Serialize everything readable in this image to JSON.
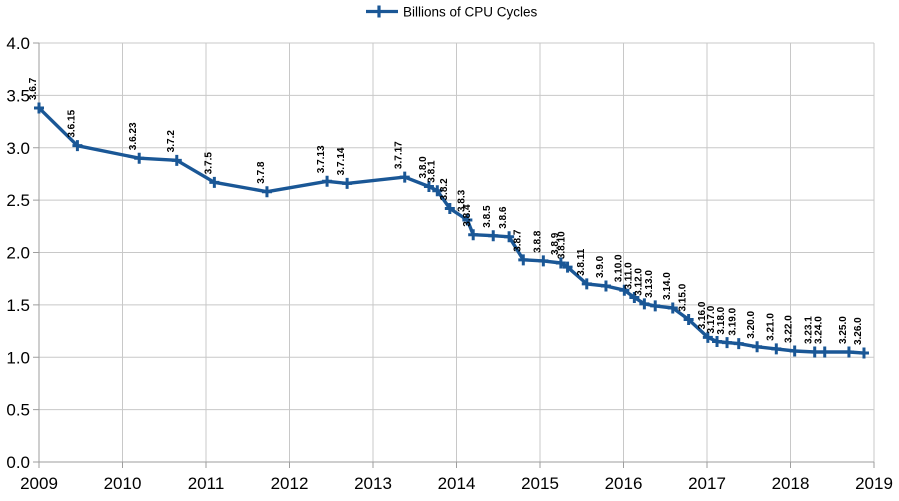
{
  "chart_data": {
    "type": "line",
    "title": "",
    "xlabel": "",
    "ylabel": "",
    "xlim": [
      2009,
      2019
    ],
    "ylim": [
      0.0,
      4.0
    ],
    "x_ticks": [
      2009,
      2010,
      2011,
      2012,
      2013,
      2014,
      2015,
      2016,
      2017,
      2018,
      2019
    ],
    "x_tick_labels": [
      "2009",
      "2010",
      "2011",
      "2012",
      "2013",
      "2014",
      "2015",
      "2016",
      "2017",
      "2018",
      "2019"
    ],
    "y_ticks": [
      0.0,
      0.5,
      1.0,
      1.5,
      2.0,
      2.5,
      3.0,
      3.5,
      4.0
    ],
    "y_tick_labels": [
      "0.0",
      "0.5",
      "1.0",
      "1.5",
      "2.0",
      "2.5",
      "3.0",
      "3.5",
      "4.0"
    ],
    "grid": true,
    "legend": {
      "label": "Billions of CPU Cycles",
      "position": "top-center",
      "marker": "plus-line"
    },
    "colors": {
      "series": "#1A5796",
      "grid": "#c8c8c8",
      "axis": "#9e9e9e",
      "text": "#000000",
      "background": "#ffffff"
    },
    "series": [
      {
        "name": "Billions of CPU Cycles",
        "color": "#1A5796",
        "marker": "plus",
        "points": [
          {
            "label": "3.6.7",
            "x": 2009.0,
            "y": 3.38
          },
          {
            "label": "3.6.15",
            "x": 2009.46,
            "y": 3.02
          },
          {
            "label": "3.6.23",
            "x": 2010.2,
            "y": 2.9
          },
          {
            "label": "3.7.2",
            "x": 2010.65,
            "y": 2.88
          },
          {
            "label": "3.7.5",
            "x": 2011.1,
            "y": 2.67
          },
          {
            "label": "3.7.8",
            "x": 2011.73,
            "y": 2.58
          },
          {
            "label": "3.7.13",
            "x": 2012.45,
            "y": 2.68
          },
          {
            "label": "3.7.14",
            "x": 2012.69,
            "y": 2.66
          },
          {
            "label": "3.7.17",
            "x": 2013.38,
            "y": 2.72
          },
          {
            "label": "3.8.0",
            "x": 2013.67,
            "y": 2.63
          },
          {
            "label": "3.8.1",
            "x": 2013.77,
            "y": 2.59
          },
          {
            "label": "3.8.2",
            "x": 2013.92,
            "y": 2.42
          },
          {
            "label": "3.8.3",
            "x": 2014.13,
            "y": 2.31
          },
          {
            "label": "3.8.4",
            "x": 2014.2,
            "y": 2.17
          },
          {
            "label": "3.8.5",
            "x": 2014.44,
            "y": 2.16
          },
          {
            "label": "3.8.6",
            "x": 2014.63,
            "y": 2.15
          },
          {
            "label": "3.8.7",
            "x": 2014.8,
            "y": 1.93
          },
          {
            "label": "3.8.8",
            "x": 2015.04,
            "y": 1.92
          },
          {
            "label": "3.8.9",
            "x": 2015.25,
            "y": 1.9
          },
          {
            "label": "3.8.10",
            "x": 2015.33,
            "y": 1.86
          },
          {
            "label": "3.8.11",
            "x": 2015.56,
            "y": 1.7
          },
          {
            "label": "3.9.0",
            "x": 2015.79,
            "y": 1.68
          },
          {
            "label": "3.10.0",
            "x": 2016.01,
            "y": 1.64
          },
          {
            "label": "3.11.0",
            "x": 2016.13,
            "y": 1.57
          },
          {
            "label": "3.12.0",
            "x": 2016.25,
            "y": 1.51
          },
          {
            "label": "3.13.0",
            "x": 2016.38,
            "y": 1.49
          },
          {
            "label": "3.14.0",
            "x": 2016.59,
            "y": 1.47
          },
          {
            "label": "3.15.0",
            "x": 2016.78,
            "y": 1.36
          },
          {
            "label": "3.16.0",
            "x": 2017.01,
            "y": 1.19
          },
          {
            "label": "3.17.0",
            "x": 2017.12,
            "y": 1.15
          },
          {
            "label": "3.18.0",
            "x": 2017.24,
            "y": 1.14
          },
          {
            "label": "3.19.0",
            "x": 2017.38,
            "y": 1.13
          },
          {
            "label": "3.20.0",
            "x": 2017.6,
            "y": 1.1
          },
          {
            "label": "3.21.0",
            "x": 2017.83,
            "y": 1.08
          },
          {
            "label": "3.22.0",
            "x": 2018.05,
            "y": 1.06
          },
          {
            "label": "3.23.1",
            "x": 2018.29,
            "y": 1.05
          },
          {
            "label": "3.24.0",
            "x": 2018.41,
            "y": 1.05
          },
          {
            "label": "3.25.0",
            "x": 2018.7,
            "y": 1.05
          },
          {
            "label": "3.26.0",
            "x": 2018.88,
            "y": 1.04
          }
        ]
      }
    ]
  }
}
